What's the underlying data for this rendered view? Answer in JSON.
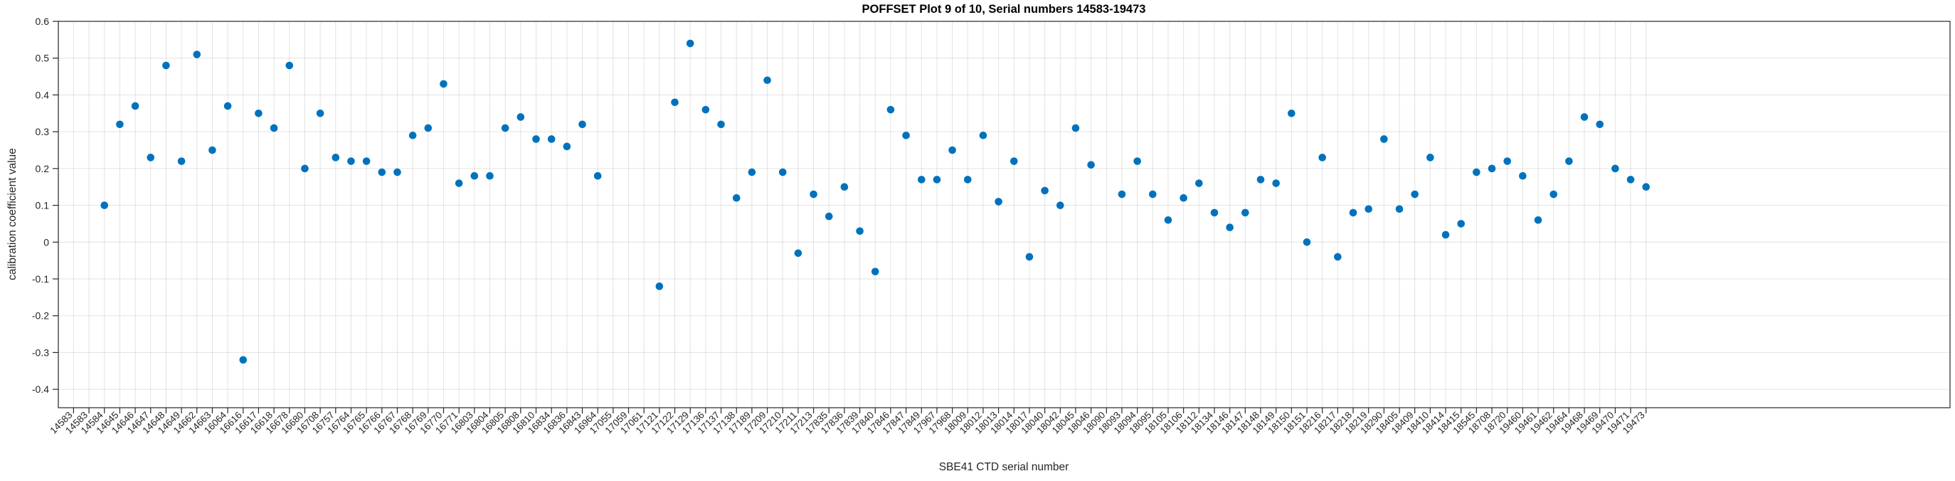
{
  "chart_data": {
    "type": "scatter",
    "title": "POFFSET Plot 9 of 10, Serial numbers 14583-19473",
    "xlabel": "SBE41 CTD serial number",
    "ylabel": "calibration coefficient value",
    "ylim": [
      -0.45,
      0.6
    ],
    "yticks": [
      0.6,
      0.5,
      0.4,
      0.3,
      0.2,
      0.1,
      0,
      -0.1,
      -0.2,
      -0.3,
      -0.4
    ],
    "grid": true,
    "legend_position": "none",
    "marker_color": "#0072BD",
    "axis_color": "#262626",
    "grid_color": "rgba(38,38,38,0.13)",
    "background": "#ffffff",
    "categories": [
      "14583",
      "14583",
      "14584",
      "14645",
      "14646",
      "14647",
      "14648",
      "14649",
      "14662",
      "14663",
      "16064",
      "16616",
      "16617",
      "16618",
      "16678",
      "16680",
      "16708",
      "16757",
      "16764",
      "16765",
      "16766",
      "16767",
      "16768",
      "16769",
      "16770",
      "16771",
      "16803",
      "16804",
      "16805",
      "16808",
      "16810",
      "16834",
      "16836",
      "16843",
      "16964",
      "17055",
      "17059",
      "17061",
      "17121",
      "17122",
      "17129",
      "17136",
      "17137",
      "17138",
      "17189",
      "17209",
      "17210",
      "17211",
      "17213",
      "17835",
      "17836",
      "17839",
      "17840",
      "17846",
      "17847",
      "17849",
      "17967",
      "17968",
      "18009",
      "18012",
      "18013",
      "18014",
      "18017",
      "18040",
      "18042",
      "18045",
      "18046",
      "18090",
      "18093",
      "18094",
      "18095",
      "18105",
      "18106",
      "18112",
      "18134",
      "18146",
      "18147",
      "18148",
      "18149",
      "18150",
      "18151",
      "18216",
      "18217",
      "18218",
      "18219",
      "18290",
      "18405",
      "18409",
      "18410",
      "18414",
      "18415",
      "18545",
      "18708",
      "18720",
      "19460",
      "19461",
      "19462",
      "19464",
      "19468",
      "19469",
      "19470",
      "19471",
      "19473"
    ],
    "values": [
      null,
      null,
      0.1,
      0.32,
      0.37,
      0.23,
      0.48,
      0.22,
      0.51,
      0.25,
      0.37,
      -0.32,
      0.35,
      0.31,
      0.48,
      0.2,
      0.35,
      0.23,
      0.22,
      0.22,
      0.19,
      0.19,
      0.29,
      0.31,
      0.43,
      0.16,
      0.18,
      0.18,
      0.31,
      0.34,
      0.28,
      0.28,
      0.26,
      0.32,
      0.18,
      null,
      null,
      null,
      -0.12,
      0.38,
      0.54,
      0.36,
      0.32,
      0.12,
      0.19,
      0.44,
      0.19,
      -0.03,
      0.13,
      0.07,
      0.15,
      0.03,
      -0.08,
      0.36,
      0.29,
      0.17,
      0.17,
      0.25,
      0.17,
      0.29,
      0.11,
      0.22,
      -0.04,
      0.14,
      0.1,
      0.31,
      0.21,
      null,
      0.13,
      0.22,
      0.13,
      0.06,
      0.12,
      0.16,
      0.08,
      0.04,
      0.08,
      0.17,
      0.16,
      0.35,
      0.0,
      0.23,
      -0.04,
      0.08,
      0.09,
      0.28,
      0.09,
      0.13,
      0.23,
      0.02,
      0.05,
      0.19,
      0.2,
      0.22,
      0.18,
      0.06,
      0.13,
      0.22,
      0.34,
      0.32,
      0.2,
      0.17,
      0.15
    ]
  }
}
